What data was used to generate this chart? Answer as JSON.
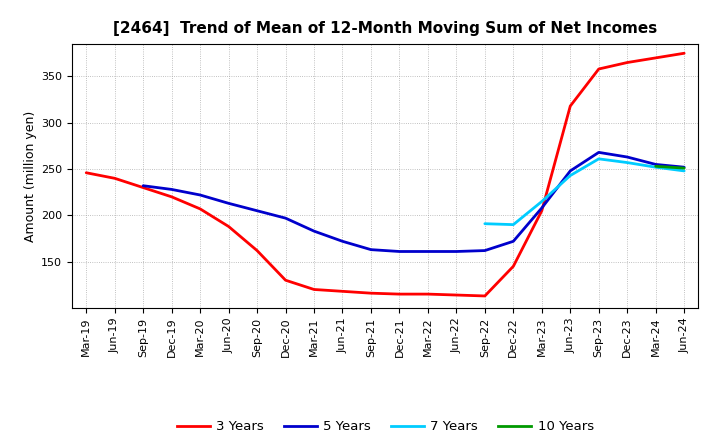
{
  "title": "[2464]  Trend of Mean of 12-Month Moving Sum of Net Incomes",
  "ylabel": "Amount (million yen)",
  "background_color": "#ffffff",
  "grid_color": "#999999",
  "tick_labels": [
    "Mar-19",
    "Jun-19",
    "Sep-19",
    "Dec-19",
    "Mar-20",
    "Jun-20",
    "Sep-20",
    "Dec-20",
    "Mar-21",
    "Jun-21",
    "Sep-21",
    "Dec-21",
    "Mar-22",
    "Jun-22",
    "Sep-22",
    "Dec-22",
    "Mar-23",
    "Jun-23",
    "Sep-23",
    "Dec-23",
    "Mar-24",
    "Jun-24"
  ],
  "series": {
    "3 Years": {
      "color": "#ff0000",
      "data": [
        246,
        240,
        230,
        220,
        207,
        188,
        162,
        130,
        120,
        118,
        116,
        115,
        115,
        114,
        113,
        145,
        205,
        318,
        358,
        365,
        370,
        375
      ]
    },
    "5 Years": {
      "color": "#0000cc",
      "data": [
        null,
        null,
        232,
        228,
        222,
        213,
        205,
        197,
        183,
        172,
        163,
        161,
        161,
        161,
        162,
        172,
        208,
        248,
        268,
        263,
        255,
        252
      ]
    },
    "7 Years": {
      "color": "#00ccff",
      "data": [
        null,
        null,
        null,
        null,
        null,
        null,
        null,
        null,
        null,
        null,
        null,
        null,
        null,
        null,
        191,
        190,
        215,
        243,
        261,
        257,
        252,
        248
      ]
    },
    "10 Years": {
      "color": "#009900",
      "data": [
        null,
        null,
        null,
        null,
        null,
        null,
        null,
        null,
        null,
        null,
        null,
        null,
        null,
        null,
        null,
        null,
        null,
        null,
        null,
        null,
        253,
        251
      ]
    }
  },
  "ylim": [
    100,
    385
  ],
  "yticks": [
    150,
    200,
    250,
    300,
    350
  ],
  "legend_labels": [
    "3 Years",
    "5 Years",
    "7 Years",
    "10 Years"
  ],
  "legend_colors": [
    "#ff0000",
    "#0000cc",
    "#00ccff",
    "#009900"
  ],
  "title_fontsize": 11,
  "axis_fontsize": 9,
  "tick_fontsize": 8
}
